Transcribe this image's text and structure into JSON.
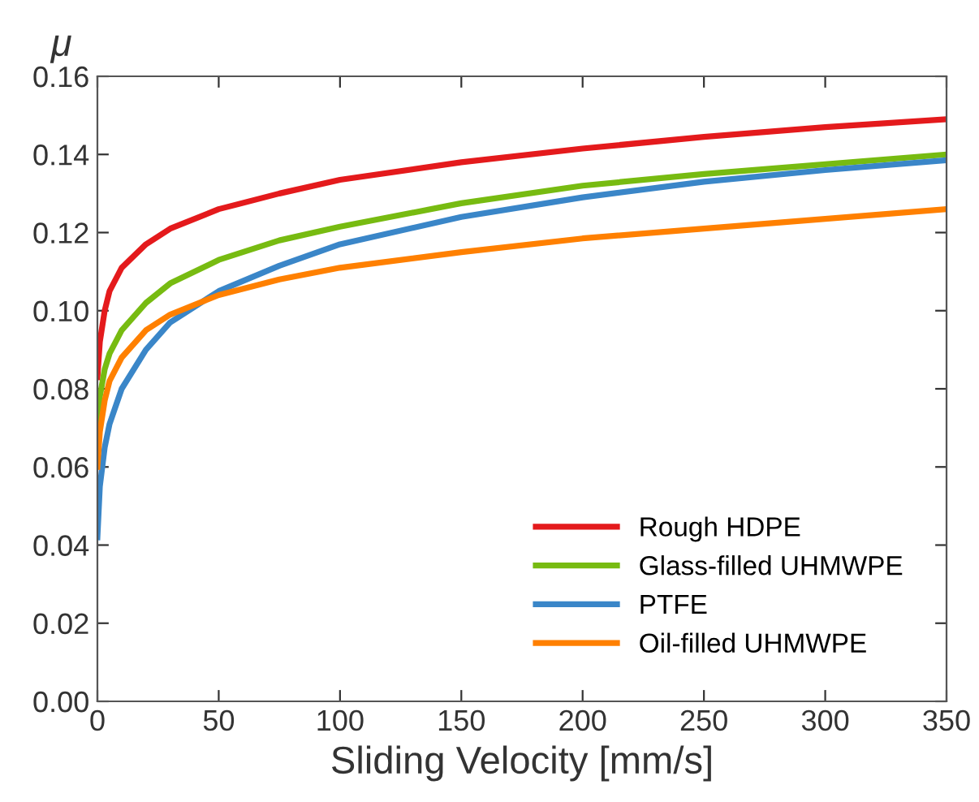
{
  "chart_data": {
    "type": "line",
    "ylabel": "μ",
    "xlabel": "Sliding Velocity [mm/s]",
    "xlim": [
      0,
      350
    ],
    "xticks": [
      0,
      50,
      100,
      150,
      200,
      250,
      300,
      350
    ],
    "ylim": [
      0,
      0.16
    ],
    "yticks": [
      {
        "value": 0,
        "label": "0.00"
      },
      {
        "value": 0.02,
        "label": "0.02"
      },
      {
        "value": 0.04,
        "label": "0.04"
      },
      {
        "value": 0.06,
        "label": "0.06"
      },
      {
        "value": 0.08,
        "label": "0.08"
      },
      {
        "value": 0.1,
        "label": "0.10"
      },
      {
        "value": 0.12,
        "label": "0.12"
      },
      {
        "value": 0.14,
        "label": "0.14"
      },
      {
        "value": 0.16,
        "label": "0.16"
      }
    ],
    "grid": false,
    "legend": "bottom right",
    "marker": "none",
    "line_style": "solid",
    "x": [
      0,
      1,
      3,
      5,
      10,
      20,
      30,
      50,
      75,
      100,
      150,
      200,
      250,
      300,
      350
    ],
    "series": [
      {
        "name": "Rough HDPE",
        "color": "#e41a1c",
        "values": [
          0.083,
          0.092,
          0.1,
          0.105,
          0.111,
          0.117,
          0.121,
          0.126,
          0.13,
          0.1335,
          0.138,
          0.1415,
          0.1445,
          0.147,
          0.149
        ]
      },
      {
        "name": "Glass-filled UHMWPE",
        "color": "#77bb11",
        "values": [
          0.069,
          0.078,
          0.085,
          0.089,
          0.095,
          0.102,
          0.107,
          0.113,
          0.118,
          0.1215,
          0.1275,
          0.132,
          0.135,
          0.1375,
          0.14
        ]
      },
      {
        "name": "PTFE",
        "color": "#3a86c8",
        "values": [
          0.042,
          0.055,
          0.065,
          0.071,
          0.08,
          0.09,
          0.097,
          0.105,
          0.1115,
          0.117,
          0.124,
          0.129,
          0.133,
          0.136,
          0.1385
        ]
      },
      {
        "name": "Oil-filled UHMWPE",
        "color": "#ff8000",
        "values": [
          0.06,
          0.069,
          0.077,
          0.082,
          0.088,
          0.095,
          0.099,
          0.104,
          0.108,
          0.111,
          0.115,
          0.1185,
          0.121,
          0.1235,
          0.126
        ]
      }
    ]
  }
}
